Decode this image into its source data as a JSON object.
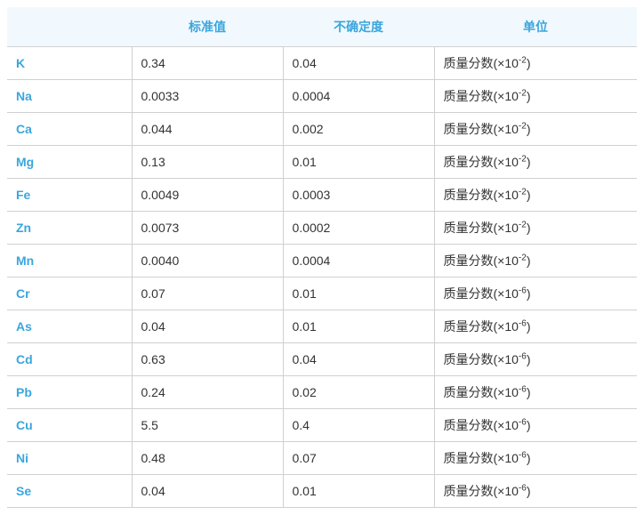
{
  "table": {
    "columns": [
      "",
      "标准值",
      "不确定度",
      "单位"
    ],
    "rows": [
      {
        "element": "K",
        "standard": "0.34",
        "uncertainty": "0.04",
        "unit_prefix": "质量分数(×10",
        "unit_exp": "-2",
        "unit_suffix": ")"
      },
      {
        "element": "Na",
        "standard": "0.0033",
        "uncertainty": "0.0004",
        "unit_prefix": "质量分数(×10",
        "unit_exp": "-2",
        "unit_suffix": ")"
      },
      {
        "element": "Ca",
        "standard": "0.044",
        "uncertainty": "0.002",
        "unit_prefix": "质量分数(×10",
        "unit_exp": "-2",
        "unit_suffix": ")"
      },
      {
        "element": "Mg",
        "standard": "0.13",
        "uncertainty": "0.01",
        "unit_prefix": "质量分数(×10",
        "unit_exp": "-2",
        "unit_suffix": ")"
      },
      {
        "element": "Fe",
        "standard": "0.0049",
        "uncertainty": "0.0003",
        "unit_prefix": "质量分数(×10",
        "unit_exp": "-2",
        "unit_suffix": ")"
      },
      {
        "element": "Zn",
        "standard": "0.0073",
        "uncertainty": "0.0002",
        "unit_prefix": "质量分数(×10",
        "unit_exp": "-2",
        "unit_suffix": ")"
      },
      {
        "element": "Mn",
        "standard": "0.0040",
        "uncertainty": "0.0004",
        "unit_prefix": "质量分数(×10",
        "unit_exp": "-2",
        "unit_suffix": ")"
      },
      {
        "element": "Cr",
        "standard": "0.07",
        "uncertainty": "0.01",
        "unit_prefix": "质量分数(×10",
        "unit_exp": "-6",
        "unit_suffix": ")"
      },
      {
        "element": "As",
        "standard": "0.04",
        "uncertainty": "0.01",
        "unit_prefix": "质量分数(×10",
        "unit_exp": "-6",
        "unit_suffix": ")"
      },
      {
        "element": "Cd",
        "standard": "0.63",
        "uncertainty": "0.04",
        "unit_prefix": "质量分数(×10",
        "unit_exp": "-6",
        "unit_suffix": ")"
      },
      {
        "element": "Pb",
        "standard": "0.24",
        "uncertainty": "0.02",
        "unit_prefix": "质量分数(×10",
        "unit_exp": "-6",
        "unit_suffix": ")"
      },
      {
        "element": "Cu",
        "standard": "5.5",
        "uncertainty": "0.4",
        "unit_prefix": "质量分数(×10",
        "unit_exp": "-6",
        "unit_suffix": ")"
      },
      {
        "element": "Ni",
        "standard": "0.48",
        "uncertainty": "0.07",
        "unit_prefix": "质量分数(×10",
        "unit_exp": "-6",
        "unit_suffix": ")"
      },
      {
        "element": "Se",
        "standard": "0.04",
        "uncertainty": "0.01",
        "unit_prefix": "质量分数(×10",
        "unit_exp": "-6",
        "unit_suffix": ")"
      }
    ],
    "header_bg": "#f1f9fe",
    "header_color": "#3aa6dd",
    "element_color": "#3aa6dd",
    "text_color": "#333333",
    "border_color": "#d0d0d0"
  }
}
